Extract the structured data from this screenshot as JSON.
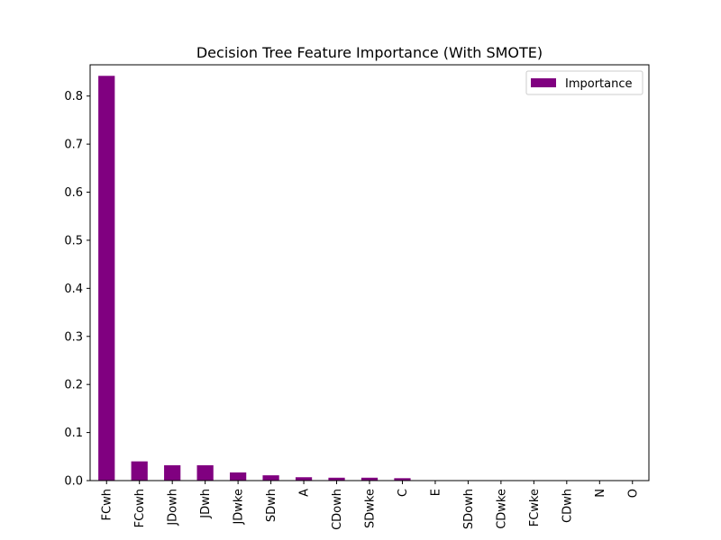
{
  "chart_data": {
    "type": "bar",
    "title": "Decision Tree Feature Importance (With SMOTE)",
    "xlabel": "",
    "ylabel": "",
    "categories": [
      "FCwh",
      "FCowh",
      "JDowh",
      "JDwh",
      "JDwke",
      "SDwh",
      "A",
      "CDowh",
      "SDwke",
      "C",
      "E",
      "SDowh",
      "CDwke",
      "FCwke",
      "CDwh",
      "N",
      "O"
    ],
    "series": [
      {
        "name": "Importance",
        "color": "#800080",
        "values": [
          0.842,
          0.04,
          0.032,
          0.032,
          0.017,
          0.011,
          0.007,
          0.006,
          0.006,
          0.005,
          0.0,
          0.0,
          0.0,
          0.0,
          0.0,
          0.0,
          0.0
        ]
      }
    ],
    "ylim": [
      0,
      0.865
    ],
    "yticks": [
      "0.0",
      "0.1",
      "0.2",
      "0.3",
      "0.4",
      "0.5",
      "0.6",
      "0.7",
      "0.8"
    ],
    "grid": false,
    "legend_position": "upper-right"
  }
}
